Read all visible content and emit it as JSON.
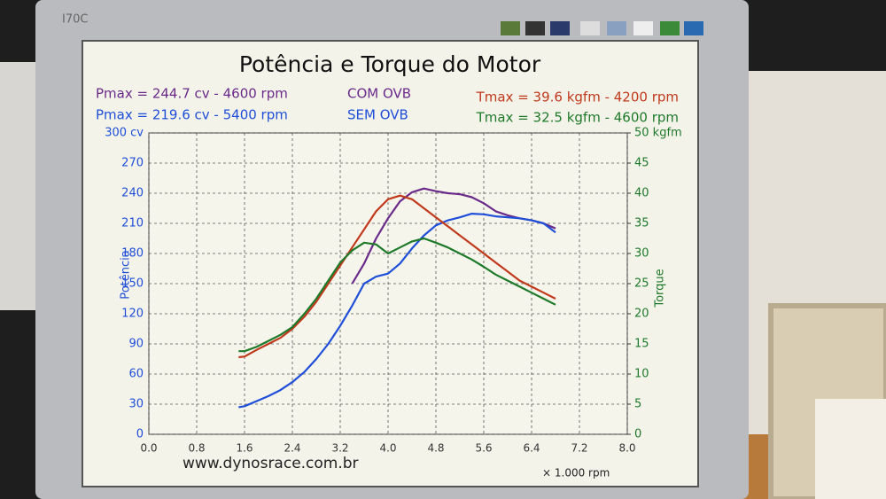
{
  "monitor": {
    "model": "I70C"
  },
  "chart_data": {
    "type": "line",
    "title": "Potência e Torque do Motor",
    "annotations": [
      {
        "text": "Pmax = 244.7 cv - 4600 rpm",
        "color": "#6a2a8a"
      },
      {
        "text": "Pmax = 219.6 cv - 5400 rpm",
        "color": "#1f4fd8"
      },
      {
        "text": "Tmax = 39.6 kgfm - 4200 rpm",
        "color": "#c0391b"
      },
      {
        "text": "Tmax = 32.5 kgfm - 4600 rpm",
        "color": "#1e7a2a"
      }
    ],
    "legend": [
      {
        "label": "COM OVB",
        "color": "#6a2a8a"
      },
      {
        "label": "SEM OVB",
        "color": "#1f4fd8"
      }
    ],
    "ylabel": "Potência",
    "y2label": "Torque",
    "xlabel": "× 1.000 rpm",
    "footer": "www.dynosrace.com.br",
    "grid": true,
    "xlim": [
      0,
      8
    ],
    "xticks": [
      {
        "value": 0,
        "label": "0.0"
      },
      0.8,
      1.6,
      2.4,
      3.2,
      {
        "value": 4,
        "label": "4.0"
      },
      4.8,
      5.6,
      6.4,
      7.2,
      {
        "value": 8,
        "label": "8.0"
      }
    ],
    "ylim": [
      0,
      300
    ],
    "yticks": [
      0,
      30,
      60,
      90,
      120,
      150,
      180,
      210,
      240,
      270,
      {
        "value": 300,
        "label": "300 cv"
      }
    ],
    "y2lim": [
      0,
      50
    ],
    "y2ticks": [
      0,
      5,
      10,
      15,
      20,
      25,
      30,
      35,
      40,
      45,
      {
        "value": 50,
        "label": "50 kgfm"
      }
    ],
    "series": [
      {
        "color": "#6a2a8a",
        "axis": "y",
        "x": [
          3.4,
          3.6,
          3.8,
          4.0,
          4.2,
          4.4,
          4.6,
          4.8,
          5.0,
          5.2,
          5.4,
          5.6,
          5.8,
          6.0,
          6.2,
          6.4,
          6.6,
          6.8
        ],
        "values": [
          150,
          170,
          195,
          215,
          232,
          241,
          244.7,
          242,
          240,
          239,
          236,
          230,
          222,
          218,
          215,
          213,
          210,
          205
        ]
      },
      {
        "color": "#1f4fd8",
        "axis": "y",
        "x": [
          1.5,
          1.6,
          1.8,
          2.0,
          2.2,
          2.4,
          2.6,
          2.8,
          3.0,
          3.2,
          3.4,
          3.6,
          3.8,
          4.0,
          4.2,
          4.4,
          4.6,
          4.8,
          5.0,
          5.2,
          5.4,
          5.6,
          5.8,
          6.0,
          6.2,
          6.4,
          6.6,
          6.8
        ],
        "values": [
          27,
          28,
          33,
          38,
          44,
          52,
          62,
          75,
          90,
          108,
          128,
          150,
          157,
          160,
          170,
          185,
          198,
          208,
          213,
          216,
          219.6,
          219,
          217,
          216,
          215,
          213,
          210,
          201
        ]
      },
      {
        "color": "#c0391b",
        "axis": "y2",
        "x": [
          1.5,
          1.6,
          1.8,
          2.0,
          2.2,
          2.4,
          2.6,
          2.8,
          3.0,
          3.2,
          3.4,
          3.6,
          3.8,
          4.0,
          4.2,
          4.4,
          4.6,
          4.8,
          5.0,
          5.2,
          5.4,
          5.6,
          5.8,
          6.0,
          6.2,
          6.4,
          6.6,
          6.8
        ],
        "values": [
          12.8,
          12.9,
          14,
          15,
          16,
          17.5,
          19.5,
          22,
          25,
          28,
          31,
          34,
          37,
          39,
          39.6,
          39,
          37.5,
          36,
          34.5,
          33,
          31.5,
          30,
          28.5,
          27,
          25.5,
          24.5,
          23.5,
          22.5
        ]
      },
      {
        "color": "#1e7a2a",
        "axis": "y2",
        "x": [
          1.5,
          1.6,
          1.8,
          2.0,
          2.2,
          2.4,
          2.6,
          2.8,
          3.0,
          3.2,
          3.4,
          3.6,
          3.8,
          4.0,
          4.2,
          4.4,
          4.6,
          4.8,
          5.0,
          5.2,
          5.4,
          5.6,
          5.8,
          6.0,
          6.2,
          6.4,
          6.6,
          6.8
        ],
        "values": [
          13.8,
          13.8,
          14.5,
          15.5,
          16.5,
          17.8,
          20,
          22.5,
          25.5,
          28.5,
          30.5,
          31.8,
          31.5,
          30,
          31,
          32,
          32.5,
          31.8,
          31,
          30,
          29,
          27.8,
          26.5,
          25.5,
          24.5,
          23.5,
          22.5,
          21.5
        ]
      }
    ]
  }
}
